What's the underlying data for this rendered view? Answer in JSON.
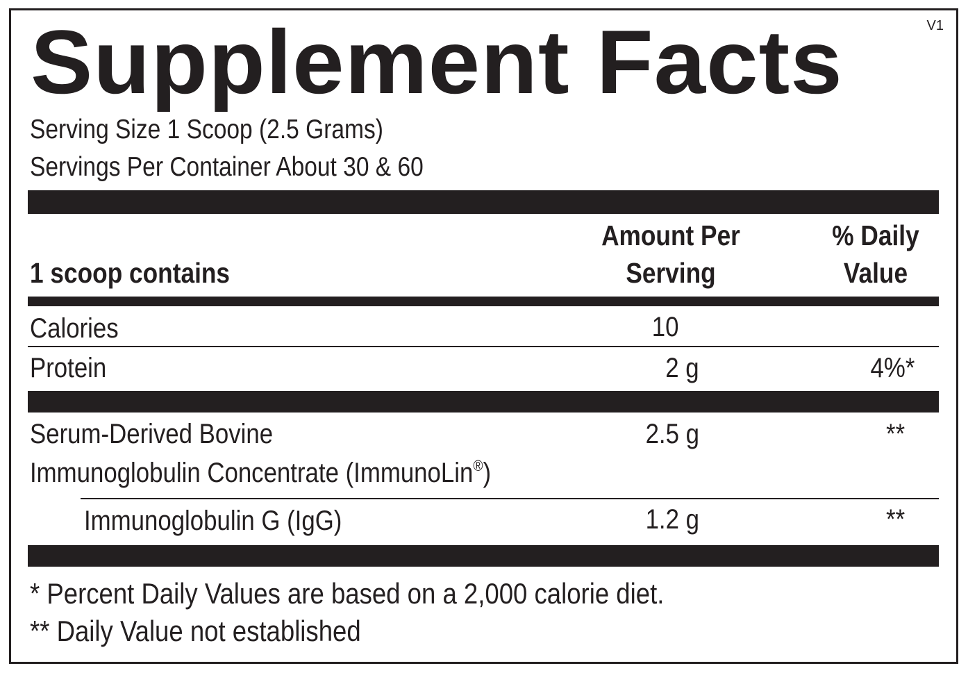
{
  "label": {
    "title": "Supplement Facts",
    "version": "V1",
    "serving_size": "Serving Size 1 Scoop (2.5 Grams)",
    "servings_per_container": "Servings Per Container About 30 & 60"
  },
  "table_header": {
    "contains": "1 scoop contains",
    "amount_line1": "Amount Per",
    "amount_line2": "Serving",
    "dv_line1": "% Daily",
    "dv_line2": "Value"
  },
  "rows": [
    {
      "name": "Calories",
      "amount": "10",
      "dv": ""
    },
    {
      "name": "Protein",
      "amount": "2 g",
      "dv": "4%*"
    },
    {
      "name_line1": "Serum-Derived Bovine",
      "name_line2": "Immunoglobulin Concentrate (ImmunoLin",
      "registered": "®",
      "name_close": ")",
      "amount": "2.5 g",
      "dv": "**"
    },
    {
      "name": "Immunoglobulin G (IgG)",
      "amount": "1.2 g",
      "dv": "**"
    }
  ],
  "footnotes": {
    "note1": "* Percent Daily Values are based on a 2,000 calorie diet.",
    "note2": "** Daily Value not established"
  },
  "colors": {
    "ink": "#231f20",
    "background": "#ffffff"
  }
}
